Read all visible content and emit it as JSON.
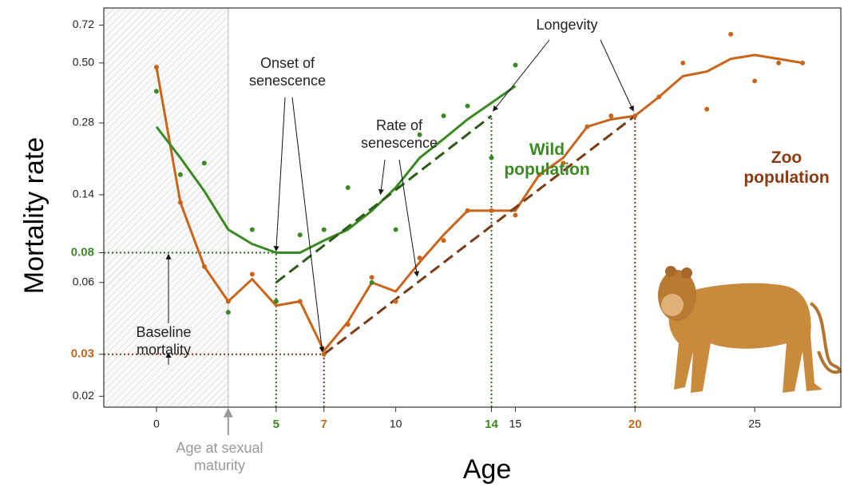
{
  "chart_data": {
    "type": "line",
    "x_label": "Age",
    "y_label": "Mortality rate",
    "xlim": [
      -2.2,
      28.6
    ],
    "ylim": [
      0.018,
      0.85
    ],
    "log_y": true,
    "xticks": [
      0,
      5,
      7,
      10,
      14,
      15,
      20,
      25
    ],
    "xtick_colors": [
      "#222222",
      "#3a8a23",
      "#c8651b",
      "#222222",
      "#3a8a23",
      "#222222",
      "#c8651b",
      "#222222"
    ],
    "yticks": [
      0.02,
      0.03,
      0.06,
      0.08,
      0.14,
      0.28,
      {
        "value": 0.5,
        "label": "0.50"
      },
      0.72
    ],
    "ytick_colors": [
      "#222222",
      "#c8651b",
      "#222222",
      "#3a8a23",
      "#222222",
      "#222222",
      "#222222",
      "#222222"
    ],
    "maturity_age": 3,
    "x": [
      0,
      1,
      2,
      3,
      4,
      5,
      6,
      7,
      8,
      9,
      10,
      11,
      12,
      13,
      14,
      15,
      16,
      17,
      18,
      19,
      20,
      21,
      22,
      23,
      24,
      25,
      26,
      27
    ],
    "points": [
      {
        "color": "#c8651b",
        "values": [
          0.48,
          0.13,
          0.07,
          0.05,
          0.065,
          0.05,
          0.05,
          0.03,
          0.04,
          0.063,
          0.05,
          0.076,
          0.09,
          0.12,
          0.12,
          0.115,
          0.17,
          0.19,
          0.27,
          0.3,
          0.3,
          0.36,
          0.5,
          0.32,
          0.66,
          0.42,
          0.5,
          0.5
        ]
      },
      {
        "color": "#3a8a23",
        "values": [
          0.38,
          0.17,
          0.19,
          0.045,
          0.1,
          0.05,
          0.095,
          0.1,
          0.15,
          0.06,
          0.1,
          0.25,
          0.3,
          0.33,
          0.2,
          0.49,
          null,
          null,
          null,
          null,
          null,
          null,
          null,
          null,
          null,
          null,
          null,
          null
        ]
      }
    ],
    "series": [
      {
        "name": "Zoo population",
        "color": "#c8651b",
        "label_color": "#8a3a12",
        "values": [
          0.48,
          0.13,
          0.07,
          0.05,
          0.062,
          0.048,
          0.05,
          0.031,
          0.041,
          0.06,
          0.055,
          0.073,
          0.095,
          0.12,
          0.12,
          0.12,
          0.17,
          0.2,
          0.27,
          0.29,
          0.3,
          0.36,
          0.44,
          0.46,
          0.52,
          0.54,
          0.52,
          0.5
        ]
      },
      {
        "name": "Wild population",
        "color": "#3a8a23",
        "label_color": "#3a8a23",
        "values": [
          0.27,
          0.2,
          0.145,
          0.1,
          0.087,
          0.08,
          0.08,
          0.09,
          0.1,
          0.12,
          0.15,
          0.2,
          0.24,
          0.29,
          0.34,
          0.4,
          null,
          null,
          null,
          null,
          null,
          null,
          null,
          null,
          null,
          null,
          null,
          null
        ]
      }
    ],
    "trend_lines": [
      {
        "color": "#2d5a1a",
        "x": [
          5,
          14
        ],
        "values": [
          0.06,
          0.3
        ]
      },
      {
        "color": "#7a3a14",
        "x": [
          7,
          20
        ],
        "values": [
          0.03,
          0.3
        ]
      }
    ],
    "markers": [
      {
        "color": "#2d6a1a",
        "x": 5,
        "y": 0.08
      },
      {
        "color": "#7a3a14",
        "x": 7,
        "y": 0.03
      },
      {
        "color": "#2d6a1a",
        "x": 14,
        "y": 0.3
      },
      {
        "color": "#7a3a14",
        "x": 20,
        "y": 0.3
      }
    ],
    "annotations": {
      "onset": "Onset of senescence",
      "rate": "Rate of senescence",
      "longevity": "Longevity",
      "baseline": "Baseline mortality",
      "maturity": "Age at sexual maturity"
    }
  }
}
